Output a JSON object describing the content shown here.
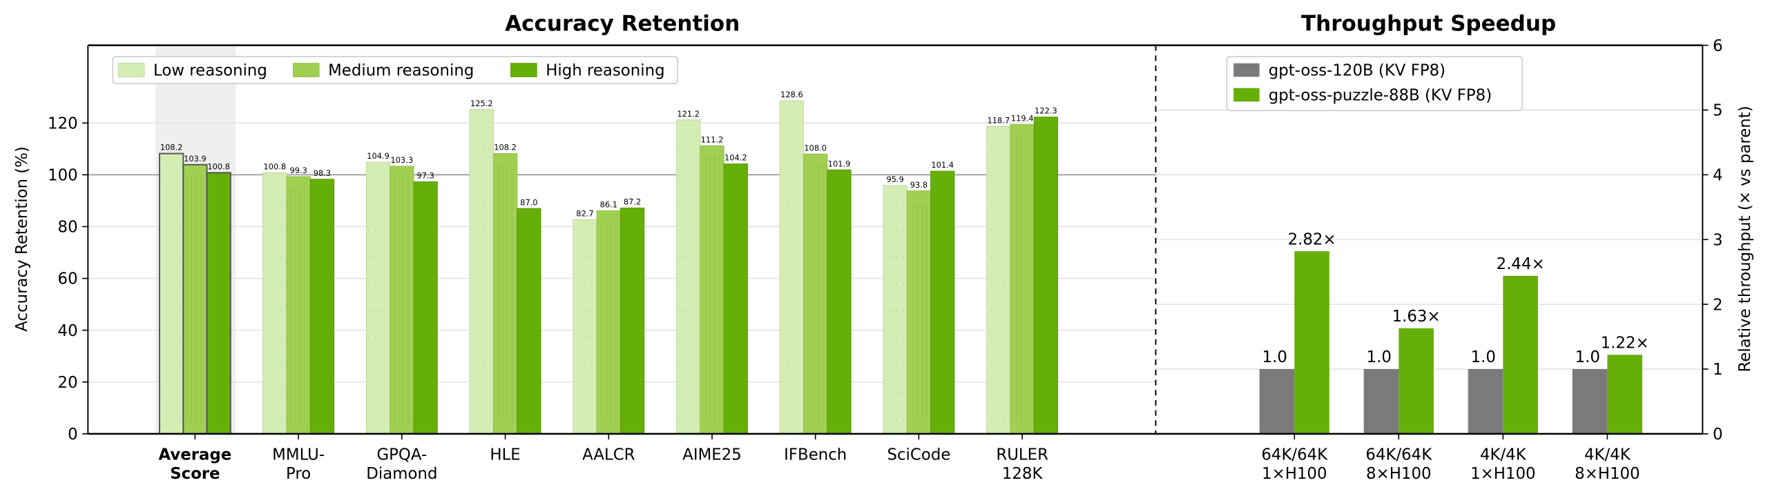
{
  "colors": {
    "low": "#d4edb4",
    "medium": "#a0cf52",
    "high": "#66ae08",
    "parent": "#7a7a7a",
    "puzzle": "#66ae08",
    "highlight": "#efefef",
    "reference_line": "#999999"
  },
  "chart_data": [
    {
      "type": "bar",
      "title": "Accuracy Retention",
      "xlabel": "",
      "ylabel": "Accuracy Retention (%)",
      "ylim": [
        0,
        150
      ],
      "yticks": [
        0,
        20,
        40,
        60,
        80,
        100,
        120
      ],
      "grid": true,
      "reference_line": 100,
      "legend_placement": "top-left",
      "highlighted_category": "Average Score",
      "categories": [
        [
          "Average",
          "Score"
        ],
        [
          "MMLU-",
          "Pro"
        ],
        [
          "GPQA-",
          "Diamond"
        ],
        [
          "HLE"
        ],
        [
          "AALCR"
        ],
        [
          "AIME25"
        ],
        [
          "IFBench"
        ],
        [
          "SciCode"
        ],
        [
          "RULER",
          "128K"
        ]
      ],
      "series": [
        {
          "name": "Low reasoning",
          "values": [
            108.2,
            100.8,
            104.9,
            125.2,
            82.7,
            121.2,
            128.6,
            95.9,
            118.7
          ],
          "labels": [
            "108.2",
            "100.8",
            "104.9",
            "125.2",
            "82.7",
            "121.2",
            "128.6",
            "95.9",
            "118.7"
          ]
        },
        {
          "name": "Medium reasoning",
          "values": [
            103.9,
            99.3,
            103.3,
            108.2,
            86.1,
            111.2,
            108.0,
            93.8,
            119.4
          ],
          "labels": [
            "103.9",
            "99.3",
            "103.3",
            "108.2",
            "86.1",
            "111.2",
            "108.0",
            "93.8",
            "119.4"
          ]
        },
        {
          "name": "High reasoning",
          "values": [
            100.8,
            98.3,
            97.3,
            87.0,
            87.2,
            104.2,
            101.9,
            101.4,
            122.3
          ],
          "labels": [
            "100.8",
            "98.3",
            "97.3",
            "87.0",
            "87.2",
            "104.2",
            "101.9",
            "101.4",
            "122.3"
          ]
        }
      ]
    },
    {
      "type": "bar",
      "title": "Throughput Speedup",
      "xlabel": "",
      "ylabel": "Relative throughput (× vs parent)",
      "ylim": [
        0,
        6
      ],
      "yticks": [
        0,
        1,
        2,
        3,
        4,
        5,
        6
      ],
      "y_axis_side": "right",
      "grid": true,
      "legend_placement": "top-left",
      "categories": [
        [
          "64K/64K",
          "1×H100"
        ],
        [
          "64K/64K",
          "8×H100"
        ],
        [
          "4K/4K",
          "1×H100"
        ],
        [
          "4K/4K",
          "8×H100"
        ]
      ],
      "series": [
        {
          "name": "gpt-oss-120B (KV FP8)",
          "values": [
            1.0,
            1.0,
            1.0,
            1.0
          ],
          "labels": [
            "1.0",
            "1.0",
            "1.0",
            "1.0"
          ]
        },
        {
          "name": "gpt-oss-puzzle-88B (KV FP8)",
          "values": [
            2.82,
            1.63,
            2.44,
            1.22
          ],
          "labels": [
            "2.82×",
            "1.63×",
            "2.44×",
            "1.22×"
          ]
        }
      ]
    }
  ]
}
